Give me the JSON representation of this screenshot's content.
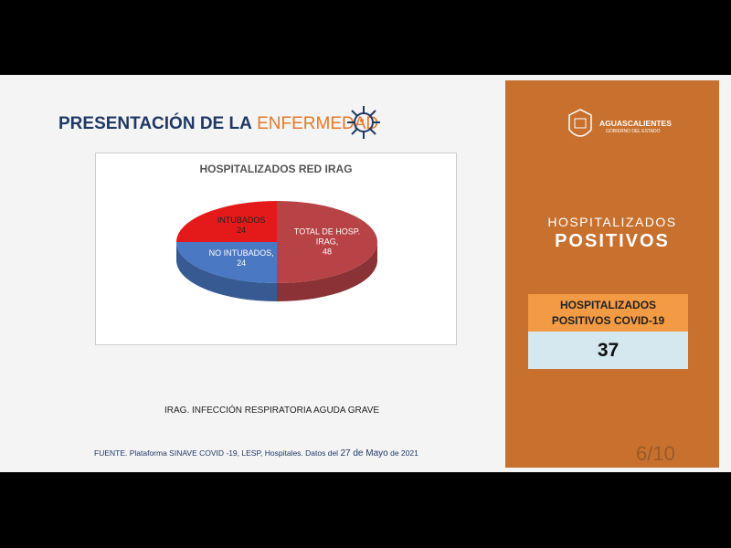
{
  "header": {
    "title_bold": "PRESENTACIÓN DE LA",
    "title_light": "ENFERMEDAD"
  },
  "chart_data": {
    "type": "pie",
    "title": "HOSPITALIZADOS RED IRAG",
    "categories": [
      "TOTAL DE HOSP. IRAG,",
      "NO INTUBADOS,",
      "INTUBADOS"
    ],
    "values": [
      48,
      24,
      24
    ],
    "colors": [
      "#b84346",
      "#4a78c2",
      "#e41a1a"
    ]
  },
  "note": "IRAG. INFECCIÓN RESPIRATORIA AGUDA GRAVE",
  "source": {
    "text": "FUENTE. Plataforma SINAVE COVID -19, LESP, Hospitales. Datos del",
    "date": "27 de Mayo",
    "year": "de 2021"
  },
  "page_number": "6/10",
  "panel": {
    "logo_name": "AGUASCALIENTES",
    "logo_sub": "GOBIERNO DEL ESTADO",
    "heading_1": "HOSPITALIZADOS",
    "heading_2": "POSITIVOS",
    "table_header": [
      "HOSPITALIZADOS",
      "POSITIVOS COVID-19"
    ],
    "table_value": 37
  }
}
